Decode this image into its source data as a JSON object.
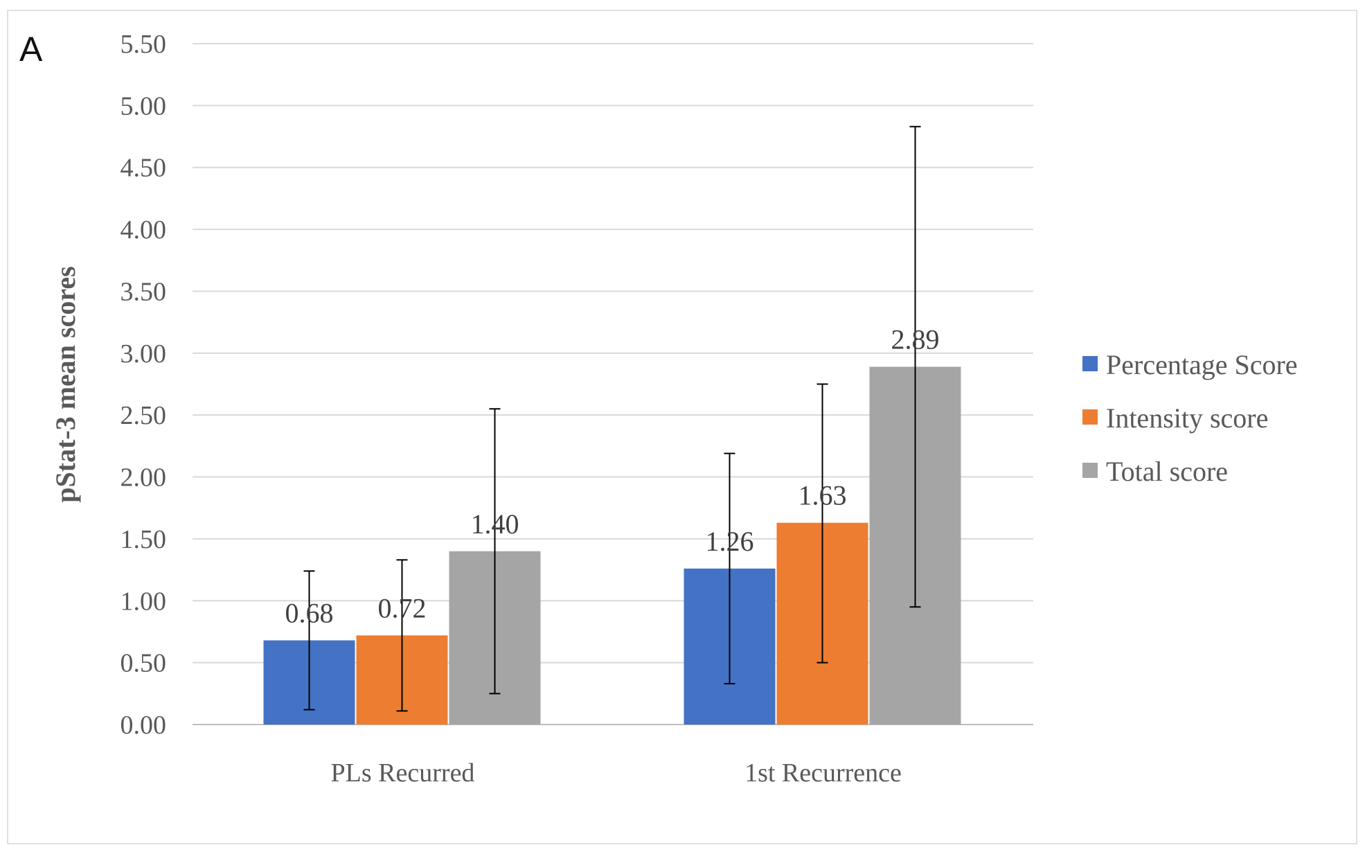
{
  "panel_label": "A",
  "chart_data": {
    "type": "bar",
    "title": "",
    "xlabel": "",
    "ylabel": "pStat-3 mean scores",
    "ylim": [
      0,
      5.5
    ],
    "ytick_step": 0.5,
    "yticks": [
      "0.00",
      "0.50",
      "1.00",
      "1.50",
      "2.00",
      "2.50",
      "3.00",
      "3.50",
      "4.00",
      "4.50",
      "5.00",
      "5.50"
    ],
    "grid": true,
    "legend_position": "right",
    "categories": [
      "PLs Recurred",
      "1st Recurrence"
    ],
    "series": [
      {
        "name": "Percentage Score",
        "color": "#4472C4",
        "values": [
          0.68,
          1.26
        ],
        "labels": [
          "0.68",
          "1.26"
        ],
        "error_low": [
          0.12,
          0.33
        ],
        "error_high": [
          1.24,
          2.19
        ]
      },
      {
        "name": "Intensity score",
        "color": "#ED7D31",
        "values": [
          0.72,
          1.63
        ],
        "labels": [
          "0.72",
          "1.63"
        ],
        "error_low": [
          0.11,
          0.5
        ],
        "error_high": [
          1.33,
          2.75
        ]
      },
      {
        "name": "Total score",
        "color": "#A5A5A5",
        "values": [
          1.4,
          2.89
        ],
        "labels": [
          "1.40",
          "2.89"
        ],
        "error_low": [
          0.25,
          0.95
        ],
        "error_high": [
          2.55,
          4.83
        ]
      }
    ]
  }
}
